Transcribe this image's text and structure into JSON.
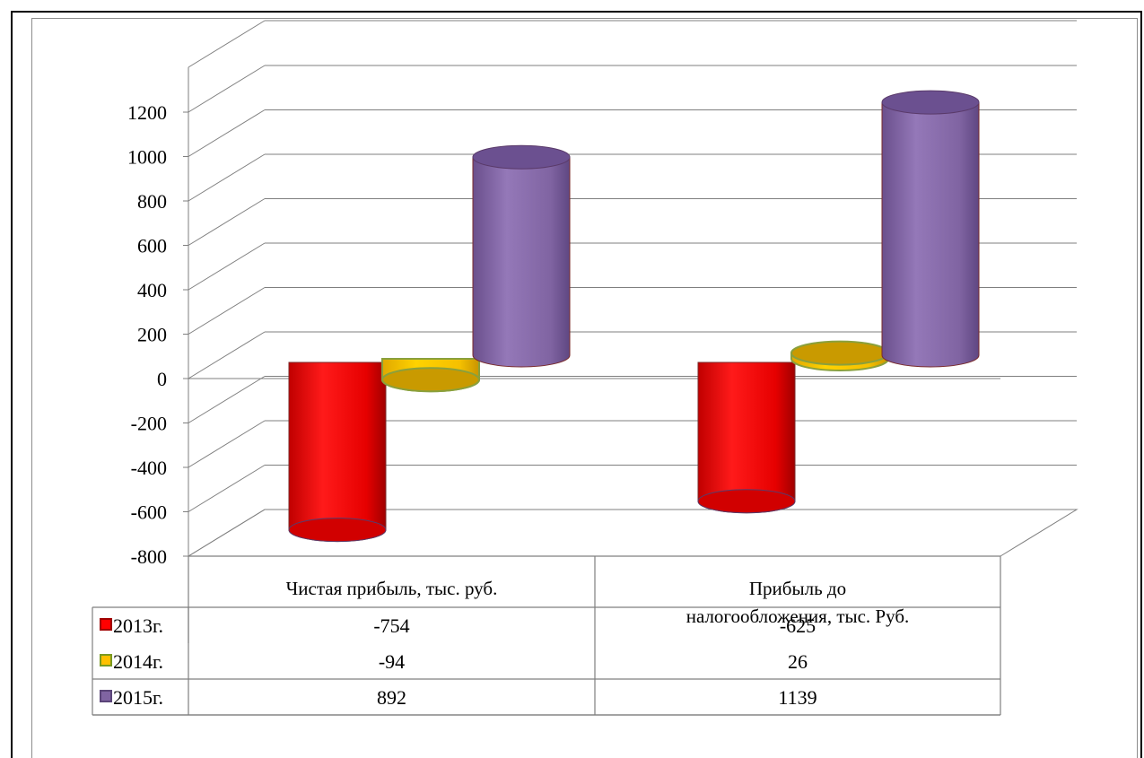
{
  "chart_data": {
    "type": "bar",
    "title": "",
    "xlabel": "",
    "ylabel": "",
    "categories": [
      "Чистая прибыль, тыс. руб.",
      "Прибыль до налогообложения, тыс.  Руб."
    ],
    "category_lines": [
      [
        "Чистая прибыль, тыс. руб."
      ],
      [
        "Прибыль до",
        "налогообложения, тыс.  Руб."
      ]
    ],
    "series": [
      {
        "name": "2013г.",
        "values": [
          -754,
          -625
        ],
        "color": "#ff0000",
        "value_labels": [
          "-754",
          "-625"
        ]
      },
      {
        "name": "2014г.",
        "values": [
          -94,
          26
        ],
        "color": "#ffc000",
        "value_labels": [
          "-94",
          "26"
        ]
      },
      {
        "name": "2015г.",
        "values": [
          892,
          1139
        ],
        "color": "#8064a2",
        "value_labels": [
          "892",
          "1139"
        ]
      }
    ],
    "ylim": [
      -800,
      1200
    ],
    "yticks": [
      "-800",
      "-600",
      "-400",
      "-200",
      "0",
      "200",
      "400",
      "600",
      "800",
      "1000",
      "1200"
    ],
    "ytick_values": [
      -800,
      -600,
      -400,
      -200,
      0,
      200,
      400,
      600,
      800,
      1000,
      1200
    ],
    "grid": true,
    "style": "3d-cylinder",
    "legend": "data-table-below"
  }
}
